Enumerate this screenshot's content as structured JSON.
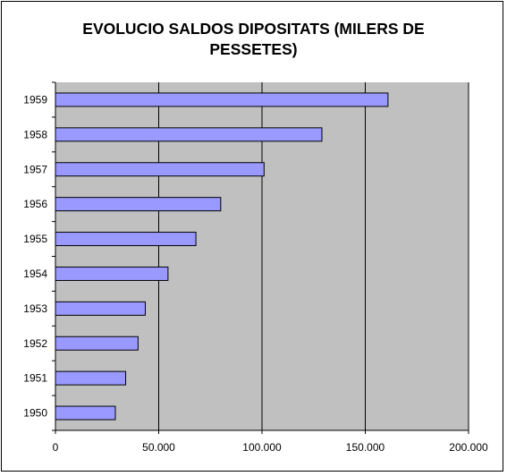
{
  "chart_data": {
    "type": "bar",
    "orientation": "horizontal",
    "title": "EVOLUCIO SALDOS DIPOSITATS (MILERS DE PESSETES)",
    "title_lines": [
      "EVOLUCIO SALDOS DIPOSITATS (MILERS DE",
      "PESSETES)"
    ],
    "categories": [
      "1950",
      "1951",
      "1952",
      "1953",
      "1954",
      "1955",
      "1956",
      "1957",
      "1958",
      "1959"
    ],
    "values": [
      29000,
      34000,
      40000,
      43500,
      54500,
      68000,
      80000,
      101000,
      129000,
      161000
    ],
    "xlim": [
      0,
      200000
    ],
    "x_ticks": [
      0,
      50000,
      100000,
      150000,
      200000
    ],
    "x_tick_labels": [
      "0",
      "50.000",
      "100.000",
      "150.000",
      "200.000"
    ],
    "xlabel": "",
    "ylabel": "",
    "grid": "vertical major gridlines",
    "legend": "none",
    "colors": {
      "bar_fill": "#9999ff",
      "bar_stroke": "#000000",
      "plot_background": "#c0c0c0",
      "gridline": "#000000"
    }
  }
}
